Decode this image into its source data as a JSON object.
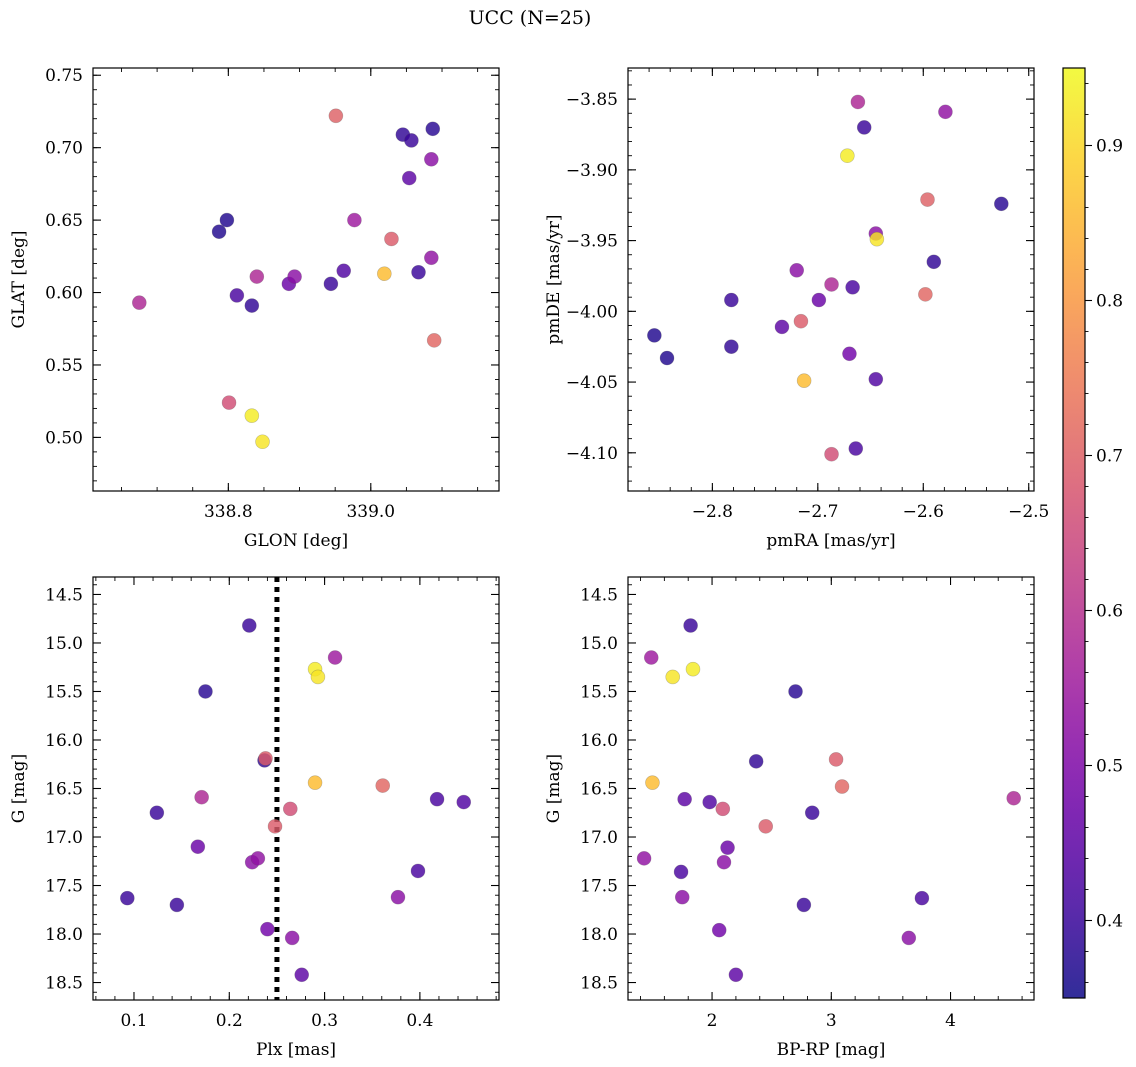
{
  "figure": {
    "title": "UCC (N=25)"
  },
  "colormap": {
    "name": "plasma",
    "vmin": 0.35,
    "vmax": 0.95,
    "ticks": [
      0.4,
      0.5,
      0.6,
      0.7,
      0.8,
      0.9
    ],
    "tick_labels": [
      "0.4",
      "0.5",
      "0.6",
      "0.7",
      "0.8",
      "0.9"
    ]
  },
  "chart_data": [
    {
      "type": "scatter",
      "xlabel": "GLON [deg]",
      "ylabel": "GLAT [deg]",
      "xlim": [
        338.61,
        339.18
      ],
      "ylim": [
        0.463,
        0.755
      ],
      "xticks": [
        338.8,
        339.0
      ],
      "xtick_labels": [
        "338.8",
        "339.0"
      ],
      "yticks": [
        0.5,
        0.55,
        0.6,
        0.65,
        0.7,
        0.75
      ],
      "ytick_labels": [
        "0.50",
        "0.55",
        "0.60",
        "0.65",
        "0.70",
        "0.75"
      ],
      "points": [
        {
          "x": 338.675,
          "y": 0.593,
          "c": 0.58
        },
        {
          "x": 338.787,
          "y": 0.642,
          "c": 0.37
        },
        {
          "x": 338.798,
          "y": 0.65,
          "c": 0.37
        },
        {
          "x": 338.801,
          "y": 0.524,
          "c": 0.66
        },
        {
          "x": 338.812,
          "y": 0.598,
          "c": 0.42
        },
        {
          "x": 338.833,
          "y": 0.515,
          "c": 0.93
        },
        {
          "x": 338.833,
          "y": 0.591,
          "c": 0.39
        },
        {
          "x": 338.84,
          "y": 0.611,
          "c": 0.58
        },
        {
          "x": 338.848,
          "y": 0.497,
          "c": 0.92
        },
        {
          "x": 338.885,
          "y": 0.606,
          "c": 0.47
        },
        {
          "x": 338.893,
          "y": 0.611,
          "c": 0.52
        },
        {
          "x": 338.944,
          "y": 0.606,
          "c": 0.4
        },
        {
          "x": 338.951,
          "y": 0.722,
          "c": 0.7
        },
        {
          "x": 338.962,
          "y": 0.615,
          "c": 0.43
        },
        {
          "x": 338.977,
          "y": 0.65,
          "c": 0.55
        },
        {
          "x": 339.019,
          "y": 0.613,
          "c": 0.86
        },
        {
          "x": 339.029,
          "y": 0.637,
          "c": 0.69
        },
        {
          "x": 339.045,
          "y": 0.709,
          "c": 0.39
        },
        {
          "x": 339.054,
          "y": 0.679,
          "c": 0.45
        },
        {
          "x": 339.057,
          "y": 0.705,
          "c": 0.4
        },
        {
          "x": 339.067,
          "y": 0.614,
          "c": 0.4
        },
        {
          "x": 339.085,
          "y": 0.624,
          "c": 0.53
        },
        {
          "x": 339.085,
          "y": 0.692,
          "c": 0.52
        },
        {
          "x": 339.087,
          "y": 0.713,
          "c": 0.38
        },
        {
          "x": 339.089,
          "y": 0.567,
          "c": 0.71
        }
      ]
    },
    {
      "type": "scatter",
      "xlabel": "pmRA [mas/yr]",
      "ylabel": "pmDE [mas/yr]",
      "xlim": [
        -2.88,
        -2.495
      ],
      "ylim": [
        -4.127,
        -3.828
      ],
      "xticks": [
        -2.8,
        -2.7,
        -2.6,
        -2.5
      ],
      "xtick_labels": [
        "−2.8",
        "−2.7",
        "−2.6",
        "−2.5"
      ],
      "yticks": [
        -4.1,
        -4.05,
        -4.0,
        -3.95,
        -3.9,
        -3.85
      ],
      "ytick_labels": [
        "−4.10",
        "−4.05",
        "−4.00",
        "−3.95",
        "−3.90",
        "−3.85"
      ],
      "points": [
        {
          "x": -2.855,
          "y": -4.017,
          "c": 0.37
        },
        {
          "x": -2.843,
          "y": -4.033,
          "c": 0.37
        },
        {
          "x": -2.782,
          "y": -3.992,
          "c": 0.4
        },
        {
          "x": -2.782,
          "y": -4.025,
          "c": 0.39
        },
        {
          "x": -2.734,
          "y": -4.011,
          "c": 0.45
        },
        {
          "x": -2.72,
          "y": -3.971,
          "c": 0.52
        },
        {
          "x": -2.716,
          "y": -4.007,
          "c": 0.69
        },
        {
          "x": -2.713,
          "y": -4.049,
          "c": 0.86
        },
        {
          "x": -2.699,
          "y": -3.992,
          "c": 0.47
        },
        {
          "x": -2.687,
          "y": -3.981,
          "c": 0.58
        },
        {
          "x": -2.687,
          "y": -4.101,
          "c": 0.66
        },
        {
          "x": -2.672,
          "y": -3.89,
          "c": 0.93
        },
        {
          "x": -2.67,
          "y": -4.03,
          "c": 0.48
        },
        {
          "x": -2.667,
          "y": -3.983,
          "c": 0.42
        },
        {
          "x": -2.664,
          "y": -4.097,
          "c": 0.42
        },
        {
          "x": -2.662,
          "y": -3.852,
          "c": 0.58
        },
        {
          "x": -2.656,
          "y": -3.87,
          "c": 0.4
        },
        {
          "x": -2.645,
          "y": -3.945,
          "c": 0.52
        },
        {
          "x": -2.645,
          "y": -4.048,
          "c": 0.43
        },
        {
          "x": -2.644,
          "y": -3.949,
          "c": 0.92
        },
        {
          "x": -2.598,
          "y": -3.988,
          "c": 0.71
        },
        {
          "x": -2.596,
          "y": -3.921,
          "c": 0.7
        },
        {
          "x": -2.59,
          "y": -3.965,
          "c": 0.39
        },
        {
          "x": -2.579,
          "y": -3.859,
          "c": 0.53
        },
        {
          "x": -2.526,
          "y": -3.924,
          "c": 0.38
        }
      ]
    },
    {
      "type": "scatter",
      "xlabel": "Plx [mas]",
      "ylabel": "G [mag]",
      "xlim": [
        0.057,
        0.483
      ],
      "ylim": [
        18.68,
        14.32
      ],
      "yinverted": true,
      "xticks": [
        0.1,
        0.2,
        0.3,
        0.4
      ],
      "xtick_labels": [
        "0.1",
        "0.2",
        "0.3",
        "0.4"
      ],
      "yticks": [
        14.5,
        15.0,
        15.5,
        16.0,
        16.5,
        17.0,
        17.5,
        18.0,
        18.5
      ],
      "ytick_labels": [
        "14.5",
        "15.0",
        "15.5",
        "16.0",
        "16.5",
        "17.0",
        "17.5",
        "18.0",
        "18.5"
      ],
      "vline": {
        "x": 0.25,
        "style": "dotted",
        "color": "#000000"
      },
      "points": [
        {
          "x": 0.093,
          "y": 17.63,
          "c": 0.4
        },
        {
          "x": 0.124,
          "y": 16.75,
          "c": 0.4
        },
        {
          "x": 0.145,
          "y": 17.7,
          "c": 0.4
        },
        {
          "x": 0.167,
          "y": 17.1,
          "c": 0.47
        },
        {
          "x": 0.171,
          "y": 16.59,
          "c": 0.58
        },
        {
          "x": 0.175,
          "y": 15.5,
          "c": 0.38
        },
        {
          "x": 0.221,
          "y": 14.82,
          "c": 0.4
        },
        {
          "x": 0.224,
          "y": 17.26,
          "c": 0.52
        },
        {
          "x": 0.23,
          "y": 17.22,
          "c": 0.53
        },
        {
          "x": 0.237,
          "y": 16.21,
          "c": 0.39
        },
        {
          "x": 0.238,
          "y": 16.19,
          "c": 0.69
        },
        {
          "x": 0.24,
          "y": 17.95,
          "c": 0.48
        },
        {
          "x": 0.248,
          "y": 16.89,
          "c": 0.69
        },
        {
          "x": 0.264,
          "y": 16.71,
          "c": 0.66
        },
        {
          "x": 0.266,
          "y": 18.04,
          "c": 0.52
        },
        {
          "x": 0.276,
          "y": 18.42,
          "c": 0.45
        },
        {
          "x": 0.29,
          "y": 15.27,
          "c": 0.93
        },
        {
          "x": 0.29,
          "y": 16.44,
          "c": 0.86
        },
        {
          "x": 0.293,
          "y": 15.35,
          "c": 0.92
        },
        {
          "x": 0.311,
          "y": 15.15,
          "c": 0.55
        },
        {
          "x": 0.361,
          "y": 16.47,
          "c": 0.71
        },
        {
          "x": 0.377,
          "y": 17.62,
          "c": 0.52
        },
        {
          "x": 0.398,
          "y": 17.35,
          "c": 0.42
        },
        {
          "x": 0.418,
          "y": 16.61,
          "c": 0.42
        },
        {
          "x": 0.446,
          "y": 16.64,
          "c": 0.43
        }
      ]
    },
    {
      "type": "scatter",
      "xlabel": "BP-RP [mag]",
      "ylabel": "G [mag]",
      "xlim": [
        1.295,
        4.7
      ],
      "ylim": [
        18.68,
        14.32
      ],
      "yinverted": true,
      "xticks": [
        2,
        3,
        4
      ],
      "xtick_labels": [
        "2",
        "3",
        "4"
      ],
      "yticks": [
        14.5,
        15.0,
        15.5,
        16.0,
        16.5,
        17.0,
        17.5,
        18.0,
        18.5
      ],
      "ytick_labels": [
        "14.5",
        "15.0",
        "15.5",
        "16.0",
        "16.5",
        "17.0",
        "17.5",
        "18.0",
        "18.5"
      ],
      "points": [
        {
          "x": 1.43,
          "y": 17.22,
          "c": 0.53
        },
        {
          "x": 1.49,
          "y": 15.15,
          "c": 0.55
        },
        {
          "x": 1.5,
          "y": 16.44,
          "c": 0.86
        },
        {
          "x": 1.67,
          "y": 15.35,
          "c": 0.92
        },
        {
          "x": 1.74,
          "y": 17.36,
          "c": 0.42
        },
        {
          "x": 1.75,
          "y": 17.62,
          "c": 0.52
        },
        {
          "x": 1.77,
          "y": 16.61,
          "c": 0.45
        },
        {
          "x": 1.82,
          "y": 14.82,
          "c": 0.4
        },
        {
          "x": 1.84,
          "y": 15.27,
          "c": 0.93
        },
        {
          "x": 1.98,
          "y": 16.64,
          "c": 0.43
        },
        {
          "x": 2.06,
          "y": 17.96,
          "c": 0.48
        },
        {
          "x": 2.09,
          "y": 16.71,
          "c": 0.66
        },
        {
          "x": 2.1,
          "y": 17.26,
          "c": 0.52
        },
        {
          "x": 2.13,
          "y": 17.11,
          "c": 0.47
        },
        {
          "x": 2.2,
          "y": 18.42,
          "c": 0.45
        },
        {
          "x": 2.37,
          "y": 16.22,
          "c": 0.39
        },
        {
          "x": 2.45,
          "y": 16.89,
          "c": 0.69
        },
        {
          "x": 2.7,
          "y": 15.5,
          "c": 0.38
        },
        {
          "x": 2.77,
          "y": 17.7,
          "c": 0.4
        },
        {
          "x": 2.84,
          "y": 16.75,
          "c": 0.4
        },
        {
          "x": 3.04,
          "y": 16.2,
          "c": 0.69
        },
        {
          "x": 3.09,
          "y": 16.48,
          "c": 0.71
        },
        {
          "x": 3.65,
          "y": 18.04,
          "c": 0.52
        },
        {
          "x": 3.76,
          "y": 17.63,
          "c": 0.42
        },
        {
          "x": 4.53,
          "y": 16.6,
          "c": 0.58
        }
      ]
    }
  ]
}
